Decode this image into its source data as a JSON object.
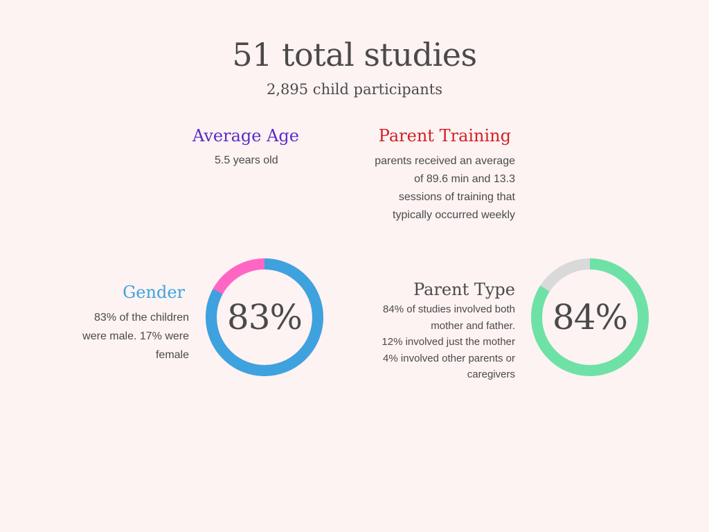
{
  "header": {
    "title": "51 total studies",
    "subtitle": "2,895 child participants"
  },
  "average_age": {
    "heading": "Average Age",
    "text": "5.5 years old",
    "color": "#5b2bc9"
  },
  "parent_training": {
    "heading": "Parent Training",
    "lines": [
      "parents received an average",
      "of 89.6 min and 13.3",
      "sessions of training that",
      "typically occurred weekly"
    ],
    "color": "#d51f25"
  },
  "gender": {
    "heading": "Gender",
    "lines": [
      "83% of the children",
      "were male. 17% were",
      "female"
    ],
    "color": "#3ea2df",
    "donut": {
      "label": "83%",
      "value": 83,
      "primary_color": "#3ea2df",
      "remainder_color": "#ff66c4"
    }
  },
  "parent_type": {
    "heading": "Parent Type",
    "lines": [
      "84% of studies involved both",
      "mother and father.",
      "12% involved just the mother",
      "4% involved other parents or",
      "caregivers"
    ],
    "donut": {
      "label": "84%",
      "value": 84,
      "primary_color": "#6ee2a6",
      "remainder_color": "#d9d9d9"
    }
  }
}
